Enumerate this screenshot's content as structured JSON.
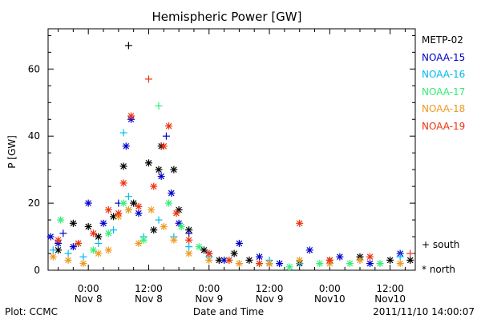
{
  "chart_data": {
    "type": "scatter",
    "title": "Hemispheric Power [GW]",
    "ylabel": "P [GW]",
    "xlabel": "Date and Time",
    "ylim": [
      0,
      72
    ],
    "xlim": [
      "2011-11-07 16:00",
      "2011-11-10 17:00"
    ],
    "y_ticks": [
      "0",
      "20",
      "40",
      "60"
    ],
    "x_ticks": [
      {
        "time": "0:00",
        "date": "Nov 8"
      },
      {
        "time": "12:00",
        "date": "Nov 8"
      },
      {
        "time": "0:00",
        "date": "Nov 9"
      },
      {
        "time": "12:00",
        "date": "Nov 9"
      },
      {
        "time": "0:00",
        "date": "Nov10"
      },
      {
        "time": "12:00",
        "date": "Nov10"
      }
    ],
    "grid": false,
    "legend_position": "right",
    "markers": {
      "plus": "south",
      "asterisk": "north"
    },
    "series": [
      {
        "name": "METP-02",
        "color": "#000000",
        "points": [
          [
            "2011-11-07 18:00",
            6,
            "n"
          ],
          [
            "2011-11-07 21:00",
            14,
            "n"
          ],
          [
            "2011-11-08 00:00",
            13,
            "n"
          ],
          [
            "2011-11-08 02:00",
            10,
            "n"
          ],
          [
            "2011-11-08 05:00",
            16,
            "n"
          ],
          [
            "2011-11-08 07:00",
            31,
            "n"
          ],
          [
            "2011-11-08 08:00",
            67,
            "s"
          ],
          [
            "2011-11-08 09:00",
            20,
            "n"
          ],
          [
            "2011-11-08 12:00",
            32,
            "n"
          ],
          [
            "2011-11-08 13:00",
            12,
            "n"
          ],
          [
            "2011-11-08 14:00",
            30,
            "n"
          ],
          [
            "2011-11-08 14:30",
            37,
            "n"
          ],
          [
            "2011-11-08 17:00",
            30,
            "n"
          ],
          [
            "2011-11-08 18:00",
            18,
            "n"
          ],
          [
            "2011-11-08 20:00",
            12,
            "n"
          ],
          [
            "2011-11-08 23:00",
            6,
            "n"
          ],
          [
            "2011-11-09 02:00",
            3,
            "n"
          ],
          [
            "2011-11-09 05:00",
            5,
            "n"
          ],
          [
            "2011-11-09 08:00",
            3,
            "n"
          ],
          [
            "2011-11-09 12:00",
            2,
            "n"
          ],
          [
            "2011-11-09 18:00",
            2,
            "n"
          ],
          [
            "2011-11-10 00:00",
            3,
            "n"
          ],
          [
            "2011-11-10 06:00",
            4,
            "n"
          ],
          [
            "2011-11-10 12:00",
            3,
            "n"
          ],
          [
            "2011-11-10 16:00",
            3,
            "n"
          ]
        ]
      },
      {
        "name": "NOAA-15",
        "color": "#0000cc",
        "points": [
          [
            "2011-11-07 16:30",
            10,
            "n"
          ],
          [
            "2011-11-07 18:00",
            8,
            "n"
          ],
          [
            "2011-11-07 19:00",
            11,
            "s"
          ],
          [
            "2011-11-07 21:00",
            7,
            "n"
          ],
          [
            "2011-11-08 00:00",
            20,
            "n"
          ],
          [
            "2011-11-08 03:00",
            14,
            "n"
          ],
          [
            "2011-11-08 06:00",
            20,
            "s"
          ],
          [
            "2011-11-08 07:30",
            37,
            "n"
          ],
          [
            "2011-11-08 08:30",
            45,
            "n"
          ],
          [
            "2011-11-08 10:00",
            17,
            "n"
          ],
          [
            "2011-11-08 14:30",
            28,
            "n"
          ],
          [
            "2011-11-08 15:30",
            40,
            "s"
          ],
          [
            "2011-11-08 16:30",
            23,
            "n"
          ],
          [
            "2011-11-08 18:00",
            14,
            "n"
          ],
          [
            "2011-11-08 20:00",
            11,
            "s"
          ],
          [
            "2011-11-09 00:00",
            5,
            "n"
          ],
          [
            "2011-11-09 03:00",
            3,
            "n"
          ],
          [
            "2011-11-09 06:00",
            8,
            "n"
          ],
          [
            "2011-11-09 10:00",
            4,
            "n"
          ],
          [
            "2011-11-09 14:00",
            2,
            "n"
          ],
          [
            "2011-11-09 20:00",
            6,
            "n"
          ],
          [
            "2011-11-10 02:00",
            4,
            "n"
          ],
          [
            "2011-11-10 08:00",
            2,
            "n"
          ],
          [
            "2011-11-10 14:00",
            5,
            "n"
          ]
        ]
      },
      {
        "name": "NOAA-16",
        "color": "#00bbee",
        "points": [
          [
            "2011-11-07 17:00",
            6,
            "s"
          ],
          [
            "2011-11-07 20:00",
            5,
            "s"
          ],
          [
            "2011-11-07 23:00",
            4,
            "s"
          ],
          [
            "2011-11-08 02:00",
            8,
            "s"
          ],
          [
            "2011-11-08 05:00",
            12,
            "s"
          ],
          [
            "2011-11-08 07:00",
            41,
            "s"
          ],
          [
            "2011-11-08 08:00",
            22,
            "s"
          ],
          [
            "2011-11-08 11:00",
            10,
            "s"
          ],
          [
            "2011-11-08 14:00",
            15,
            "s"
          ],
          [
            "2011-11-08 17:00",
            10,
            "s"
          ],
          [
            "2011-11-08 20:00",
            7,
            "s"
          ],
          [
            "2011-11-09 00:00",
            4,
            "s"
          ],
          [
            "2011-11-09 06:00",
            2,
            "s"
          ],
          [
            "2011-11-09 12:00",
            3,
            "s"
          ],
          [
            "2011-11-09 18:00",
            2,
            "s"
          ],
          [
            "2011-11-10 00:00",
            2,
            "s"
          ],
          [
            "2011-11-10 06:00",
            3,
            "s"
          ],
          [
            "2011-11-10 14:00",
            4,
            "s"
          ]
        ]
      },
      {
        "name": "NOAA-17",
        "color": "#33ee77",
        "points": [
          [
            "2011-11-07 18:30",
            15,
            "n"
          ],
          [
            "2011-11-07 22:00",
            8,
            "n"
          ],
          [
            "2011-11-08 01:00",
            6,
            "n"
          ],
          [
            "2011-11-08 04:00",
            11,
            "n"
          ],
          [
            "2011-11-08 07:00",
            20,
            "n"
          ],
          [
            "2011-11-08 08:00",
            18,
            "n"
          ],
          [
            "2011-11-08 11:00",
            9,
            "n"
          ],
          [
            "2011-11-08 14:00",
            49,
            "s"
          ],
          [
            "2011-11-08 16:00",
            20,
            "n"
          ],
          [
            "2011-11-08 18:30",
            13,
            "n"
          ],
          [
            "2011-11-08 22:00",
            7,
            "n"
          ],
          [
            "2011-11-09 04:00",
            3,
            "n"
          ],
          [
            "2011-11-09 10:00",
            2,
            "n"
          ],
          [
            "2011-11-09 16:00",
            1,
            "n"
          ],
          [
            "2011-11-09 22:00",
            2,
            "n"
          ],
          [
            "2011-11-10 04:00",
            2,
            "n"
          ],
          [
            "2011-11-10 10:00",
            2,
            "n"
          ]
        ]
      },
      {
        "name": "NOAA-18",
        "color": "#ee9922",
        "points": [
          [
            "2011-11-07 17:00",
            4,
            "n"
          ],
          [
            "2011-11-07 20:00",
            3,
            "n"
          ],
          [
            "2011-11-07 23:00",
            2,
            "n"
          ],
          [
            "2011-11-08 02:00",
            5,
            "n"
          ],
          [
            "2011-11-08 04:00",
            6,
            "n"
          ],
          [
            "2011-11-08 06:00",
            16,
            "n"
          ],
          [
            "2011-11-08 08:00",
            18,
            "n"
          ],
          [
            "2011-11-08 10:00",
            8,
            "n"
          ],
          [
            "2011-11-08 12:30",
            18,
            "n"
          ],
          [
            "2011-11-08 15:00",
            13,
            "n"
          ],
          [
            "2011-11-08 17:00",
            9,
            "n"
          ],
          [
            "2011-11-08 20:00",
            5,
            "n"
          ],
          [
            "2011-11-09 00:00",
            3,
            "n"
          ],
          [
            "2011-11-09 06:00",
            2,
            "n"
          ],
          [
            "2011-11-09 12:00",
            2,
            "n"
          ],
          [
            "2011-11-09 18:00",
            3,
            "n"
          ],
          [
            "2011-11-10 00:00",
            2,
            "n"
          ],
          [
            "2011-11-10 06:00",
            3,
            "n"
          ],
          [
            "2011-11-10 14:00",
            2,
            "n"
          ]
        ]
      },
      {
        "name": "NOAA-19",
        "color": "#ee3311",
        "points": [
          [
            "2011-11-07 18:00",
            9,
            "n"
          ],
          [
            "2011-11-07 22:00",
            8,
            "n"
          ],
          [
            "2011-11-08 01:00",
            11,
            "n"
          ],
          [
            "2011-11-08 04:00",
            18,
            "n"
          ],
          [
            "2011-11-08 06:00",
            17,
            "n"
          ],
          [
            "2011-11-08 07:00",
            26,
            "n"
          ],
          [
            "2011-11-08 08:30",
            46,
            "n"
          ],
          [
            "2011-11-08 10:00",
            19,
            "n"
          ],
          [
            "2011-11-08 12:00",
            57,
            "s"
          ],
          [
            "2011-11-08 13:00",
            25,
            "n"
          ],
          [
            "2011-11-08 15:00",
            37,
            "n"
          ],
          [
            "2011-11-08 16:00",
            43,
            "n"
          ],
          [
            "2011-11-08 17:30",
            17,
            "n"
          ],
          [
            "2011-11-08 20:00",
            9,
            "n"
          ],
          [
            "2011-11-09 00:00",
            5,
            "n"
          ],
          [
            "2011-11-09 04:00",
            3,
            "n"
          ],
          [
            "2011-11-09 10:00",
            2,
            "n"
          ],
          [
            "2011-11-09 18:00",
            14,
            "n"
          ],
          [
            "2011-11-10 00:00",
            3,
            "n"
          ],
          [
            "2011-11-10 08:00",
            4,
            "n"
          ],
          [
            "2011-11-10 16:00",
            5,
            "s"
          ]
        ]
      }
    ]
  },
  "legend": {
    "south_symbol": "+",
    "south_label": "south",
    "north_symbol": "*",
    "north_label": "north"
  },
  "footer": {
    "plot_by": "Plot: CCMC",
    "timestamp": "2011/11/10 14:00:07"
  }
}
